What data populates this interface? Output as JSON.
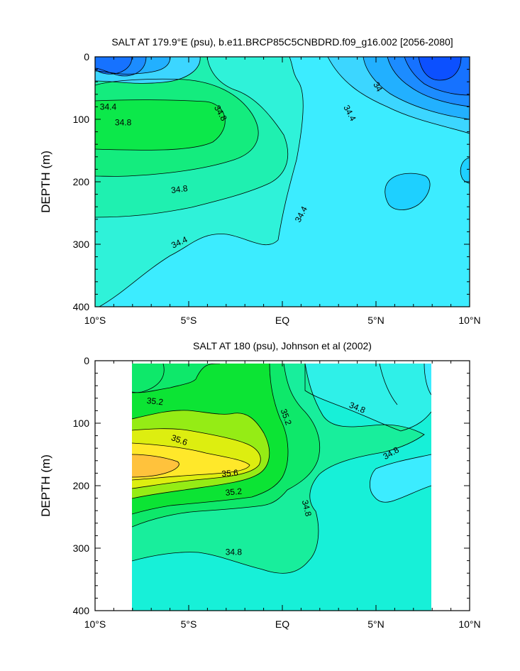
{
  "chart_data": [
    {
      "type": "contour",
      "title": "SALT AT 179.9°E (psu), b.e11.BRCP85C5CNBDRD.f09_g16.002 [2056-2080]",
      "ylabel": "DEPTH (m)",
      "xlim": [
        -10,
        10
      ],
      "ylim": [
        0,
        400
      ],
      "y_inverted": true,
      "x_ticks": [
        -10,
        -5,
        0,
        5,
        10
      ],
      "x_tick_labels": [
        "10°S",
        "5°S",
        "EQ",
        "5°N",
        "10°N"
      ],
      "y_ticks": [
        0,
        100,
        200,
        300,
        400
      ],
      "y_tick_labels": [
        "0",
        "100",
        "200",
        "300",
        "400"
      ],
      "contour_interval": 0.2,
      "labeled_contours": [
        {
          "text": "34.4",
          "x": -9.3,
          "y": 80
        },
        {
          "text": "34.8",
          "x": -8.5,
          "y": 105
        },
        {
          "text": "34.8",
          "x": -3.3,
          "y": 90,
          "angle": 60
        },
        {
          "text": "34.4",
          "x": 3.6,
          "y": 90,
          "angle": 62
        },
        {
          "text": "34",
          "x": 5.1,
          "y": 48,
          "angle": 60
        },
        {
          "text": "34.8",
          "x": -5.5,
          "y": 212,
          "angle": -8
        },
        {
          "text": "34.4",
          "x": 1.0,
          "y": 252,
          "angle": -62
        },
        {
          "text": "34.4",
          "x": -5.5,
          "y": 297,
          "angle": -25
        }
      ]
    },
    {
      "type": "contour",
      "title": "SALT AT 180 (psu), Johnson et al (2002)",
      "ylabel": "DEPTH (m)",
      "xlim": [
        -10,
        10
      ],
      "ylim": [
        0,
        400
      ],
      "y_inverted": true,
      "x_ticks": [
        -10,
        -5,
        0,
        5,
        10
      ],
      "x_tick_labels": [
        "10°S",
        "5°S",
        "EQ",
        "5°N",
        "10°N"
      ],
      "y_ticks": [
        0,
        100,
        200,
        300,
        400
      ],
      "y_tick_labels": [
        "0",
        "100",
        "200",
        "300",
        "400"
      ],
      "data_extent_x": [
        -8,
        8
      ],
      "contour_interval": 0.2,
      "labeled_contours": [
        {
          "text": "35.2",
          "x": -6.8,
          "y": 65,
          "angle": 6
        },
        {
          "text": "35.6",
          "x": -5.5,
          "y": 127,
          "angle": 20
        },
        {
          "text": "35.6",
          "x": -2.8,
          "y": 180,
          "angle": -5
        },
        {
          "text": "35.2",
          "x": -2.6,
          "y": 210,
          "angle": -6
        },
        {
          "text": "35.2",
          "x": 0.2,
          "y": 90,
          "angle": 70
        },
        {
          "text": "34.8",
          "x": 4.0,
          "y": 75,
          "angle": 22
        },
        {
          "text": "34.8",
          "x": 5.8,
          "y": 148,
          "angle": -30
        },
        {
          "text": "34.8",
          "x": 1.3,
          "y": 236,
          "angle": 76
        },
        {
          "text": "34.8",
          "x": -2.6,
          "y": 306
        }
      ]
    }
  ]
}
